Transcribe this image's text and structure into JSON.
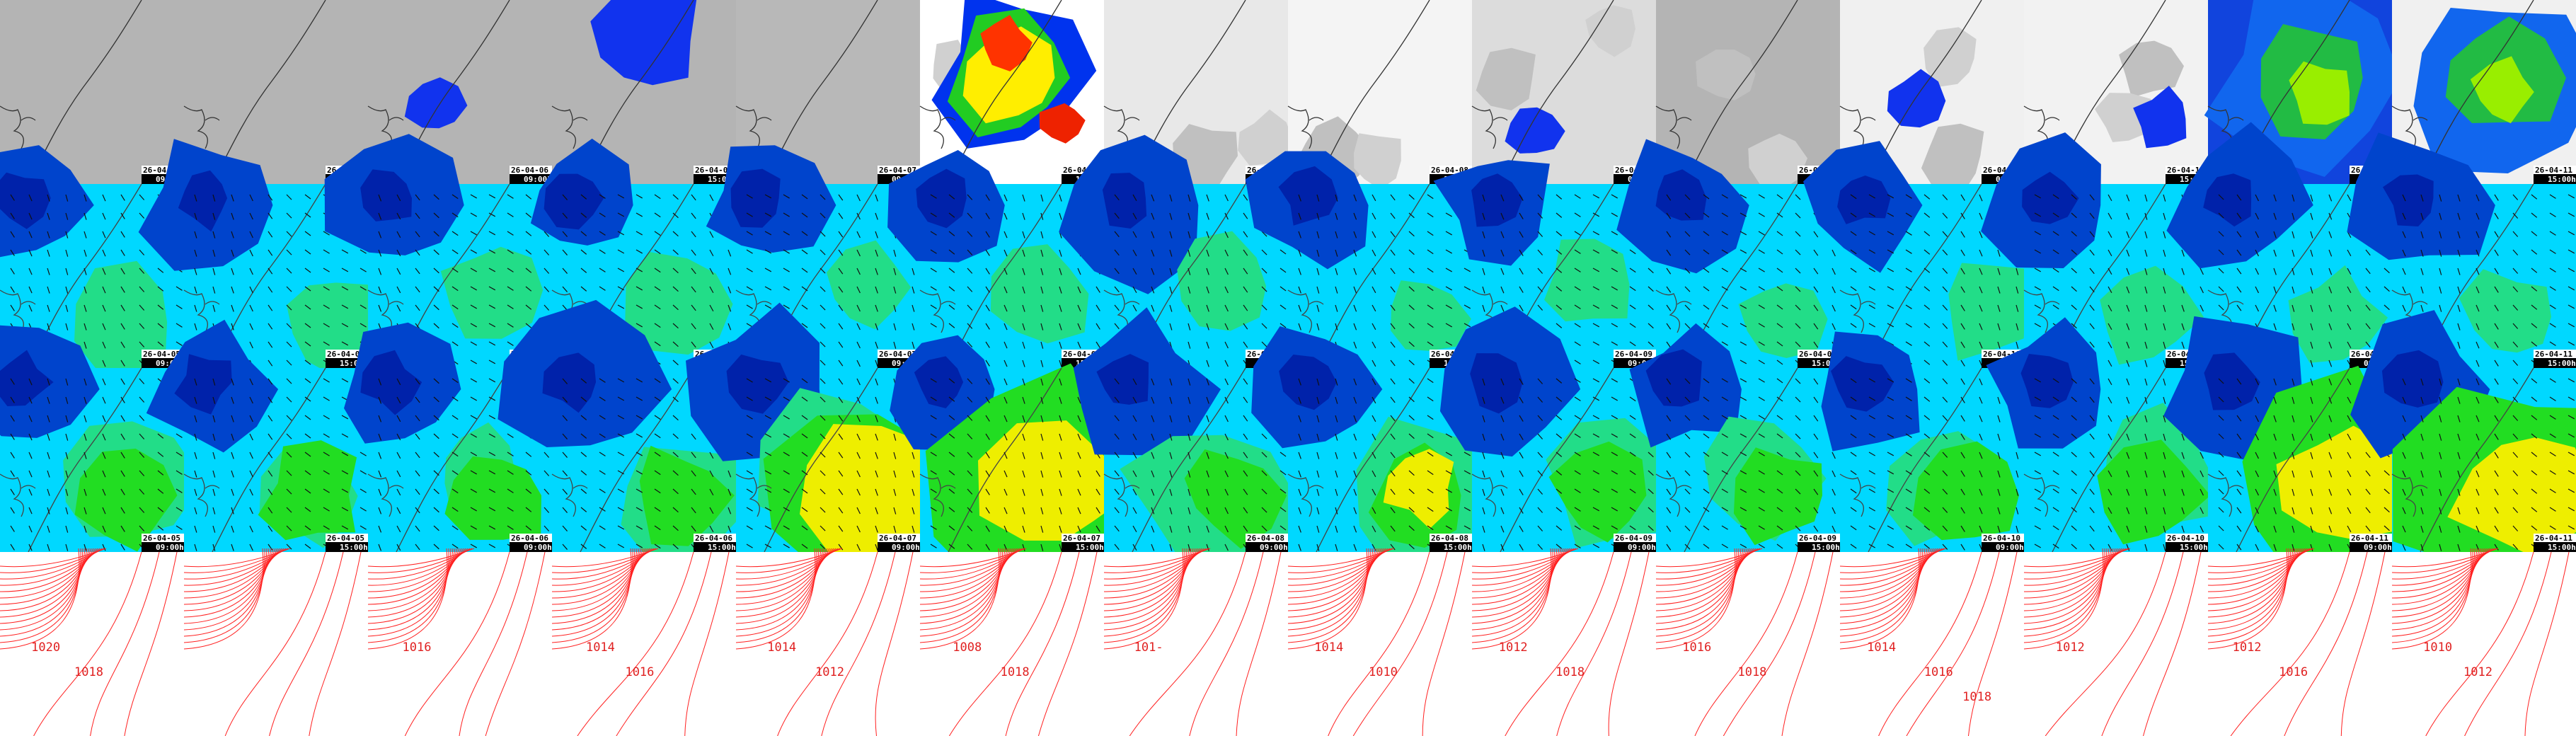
{
  "columns": [
    {
      "date": "26-04-05",
      "time": "09:00h",
      "isobars": [
        "1020",
        "1018"
      ]
    },
    {
      "date": "26-04-05",
      "time": "15:00h",
      "isobars": []
    },
    {
      "date": "26-04-06",
      "time": "09:00h",
      "isobars": [
        "1016"
      ]
    },
    {
      "date": "26-04-06",
      "time": "15:00h",
      "isobars": [
        "1014",
        "1016"
      ]
    },
    {
      "date": "26-04-07",
      "time": "09:00h",
      "isobars": [
        "1014",
        "1012"
      ]
    },
    {
      "date": "26-04-07",
      "time": "15:00h",
      "isobars": [
        "1008",
        "1018"
      ]
    },
    {
      "date": "26-04-08",
      "time": "09:00h",
      "isobars": [
        "101-"
      ]
    },
    {
      "date": "26-04-08",
      "time": "15:00h",
      "isobars": [
        "1014",
        "1010"
      ]
    },
    {
      "date": "26-04-09",
      "time": "09:00h",
      "isobars": [
        "1012",
        "1018"
      ]
    },
    {
      "date": "26-04-09",
      "time": "15:00h",
      "isobars": [
        "1016",
        "1018"
      ]
    },
    {
      "date": "26-04-10",
      "time": "09:00h",
      "isobars": [
        "1014",
        "1016",
        "1018"
      ]
    },
    {
      "date": "26-04-10",
      "time": "15:00h",
      "isobars": [
        "1012"
      ]
    },
    {
      "date": "26-04-11",
      "time": "09:00h",
      "isobars": [
        "1012",
        "1016"
      ]
    },
    {
      "date": "26-04-11",
      "time": "15:00h",
      "isobars": [
        "1010",
        "1012"
      ]
    }
  ]
}
